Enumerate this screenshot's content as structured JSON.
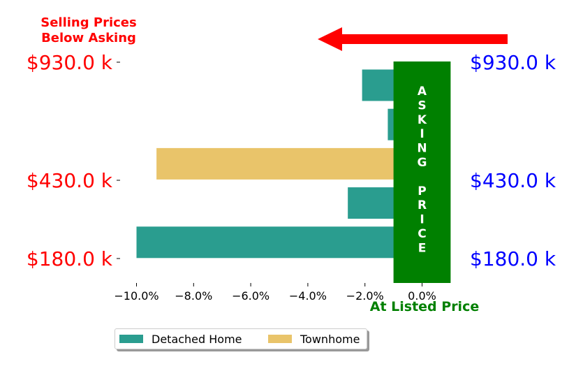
{
  "chart_data": {
    "type": "bar",
    "orientation": "horizontal",
    "categories": [
      "$180.0 k",
      "",
      "$430.0 k",
      "",
      "$930.0 k"
    ],
    "series": [
      {
        "name": "Detached Home",
        "color": "#2a9d8f",
        "values": [
          -10.0,
          -2.6,
          null,
          -1.2,
          -2.1
        ]
      },
      {
        "name": "Townhome",
        "color": "#e9c46a",
        "values": [
          null,
          null,
          -9.3,
          null,
          null
        ]
      }
    ],
    "xlim": [
      -11.0,
      1.0
    ],
    "xticks": [
      -10.0,
      -8.0,
      -6.0,
      -4.0,
      -2.0,
      0.0
    ],
    "xtick_labels": [
      "−10.0%",
      "−8.0%",
      "−6.0%",
      "−4.0%",
      "−2.0%",
      "0.0%"
    ],
    "ylabels_left": [
      "$930.0 k",
      "$430.0 k",
      "$180.0 k"
    ],
    "ylabels_right": [
      "$930.0 k",
      "$430.0 k",
      "$180.0 k"
    ],
    "annotations": {
      "top_left": [
        "Selling Prices",
        "Below Asking"
      ],
      "bottom_center": "At Listed Price",
      "asking_price": [
        "A",
        "S",
        "K",
        "I",
        "N",
        "G",
        "",
        "P",
        "R",
        "I",
        "C",
        "E"
      ]
    },
    "arrow": {
      "direction": "left",
      "color": "#ff0000"
    },
    "asking_band": {
      "from": -1.0,
      "to": 1.0,
      "color": "#008000"
    },
    "colors": {
      "left_labels": "#ff0000",
      "right_labels": "#0000ff",
      "top_text": "#ff0000",
      "bottom_text": "#008000"
    },
    "legend": {
      "placement": "bottom-left"
    }
  }
}
